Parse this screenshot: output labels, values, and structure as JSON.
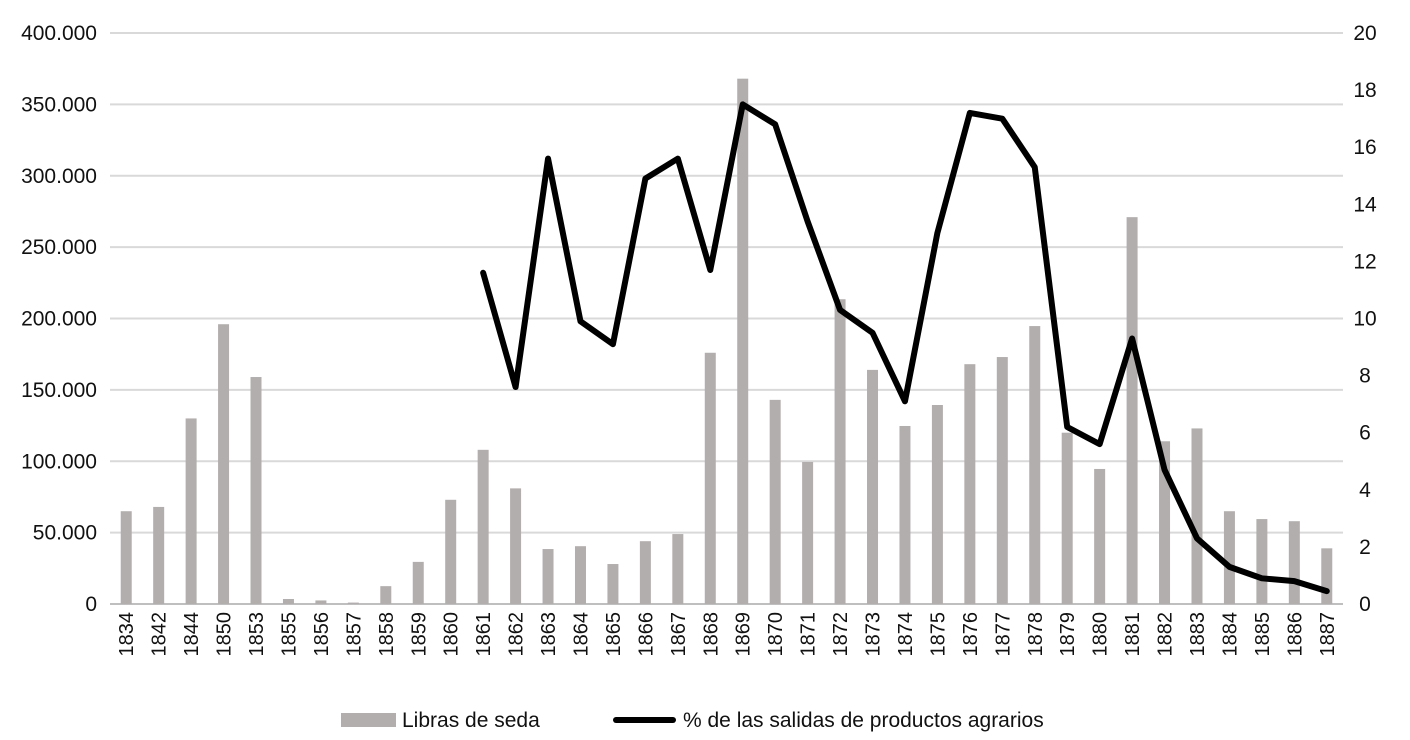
{
  "chart_data": {
    "type": "bar+line",
    "title": "",
    "categories": [
      "1834",
      "1842",
      "1844",
      "1850",
      "1853",
      "1855",
      "1856",
      "1857",
      "1858",
      "1859",
      "1860",
      "1861",
      "1862",
      "1863",
      "1864",
      "1865",
      "1866",
      "1867",
      "1868",
      "1869",
      "1870",
      "1871",
      "1872",
      "1873",
      "1874",
      "1875",
      "1876",
      "1877",
      "1878",
      "1879",
      "1880",
      "1881",
      "1882",
      "1883",
      "1884",
      "1885",
      "1886",
      "1887"
    ],
    "series": [
      {
        "name": "Libras de seda",
        "type": "bar",
        "axis": "left",
        "color": "#b3aeae",
        "values": [
          65000,
          68000,
          130000,
          196000,
          159000,
          3500,
          2500,
          1000,
          12500,
          29500,
          73000,
          108000,
          81000,
          38500,
          40500,
          28000,
          44000,
          49000,
          176000,
          368000,
          143000,
          99500,
          213500,
          164000,
          124700,
          139400,
          168000,
          173000,
          194700,
          120000,
          94600,
          271000,
          114000,
          123000,
          65000,
          59500,
          58000,
          39000
        ]
      },
      {
        "name": "% de las salidas de productos agrarios",
        "type": "line",
        "axis": "right",
        "color": "#000000",
        "values": [
          null,
          null,
          null,
          null,
          null,
          null,
          null,
          null,
          null,
          null,
          null,
          11.6,
          7.6,
          15.6,
          9.9,
          9.1,
          14.9,
          15.6,
          11.7,
          17.5,
          16.8,
          13.4,
          10.3,
          9.5,
          7.1,
          13.0,
          17.2,
          17.0,
          15.3,
          6.2,
          5.6,
          9.3,
          4.7,
          2.3,
          1.3,
          0.9,
          0.8,
          0.45
        ]
      }
    ],
    "y_left": {
      "ylim": [
        0,
        400000
      ],
      "ticks": [
        0,
        50000,
        100000,
        150000,
        200000,
        250000,
        300000,
        350000,
        400000
      ],
      "tick_labels": [
        "0",
        "50.000",
        "100.000",
        "150.000",
        "200.000",
        "250.000",
        "300.000",
        "350.000",
        "400.000"
      ]
    },
    "y_right": {
      "ylim": [
        0,
        20
      ],
      "ticks": [
        0,
        2,
        4,
        6,
        8,
        10,
        12,
        14,
        16,
        18,
        20
      ],
      "tick_labels": [
        "0",
        "2",
        "4",
        "6",
        "8",
        "10",
        "12",
        "14",
        "16",
        "18",
        "20"
      ]
    },
    "xlabel": "",
    "grid": true,
    "gridColor": "#d9d9d9",
    "legend": "bottom"
  }
}
